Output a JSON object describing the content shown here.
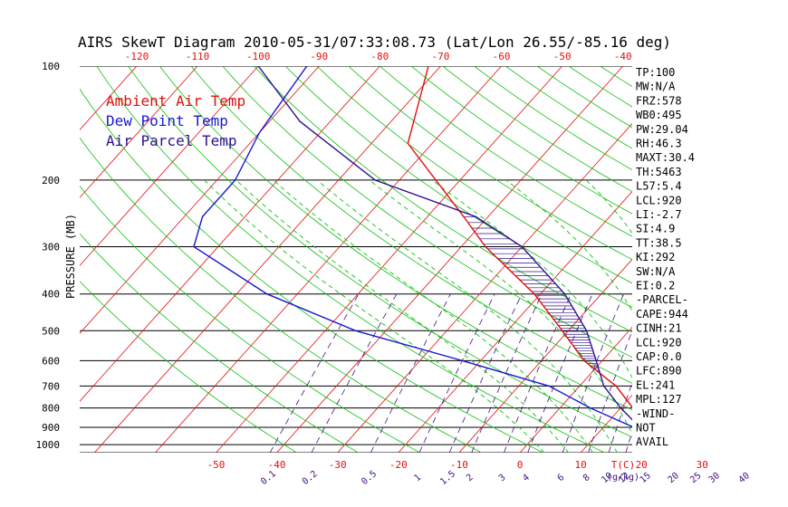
{
  "chart_data": {
    "type": "line",
    "title": "AIRS SkewT Diagram 2010-05-31/07:33:08.73 (Lat/Lon 26.55/-85.16 deg)",
    "ylabel": "PRESSURE (MB)",
    "xunit": "T(C)",
    "mixing_unit": "(g/kg)",
    "legend": [
      {
        "label": "Ambient Air Temp",
        "color": "#e01010"
      },
      {
        "label": "Dew Point Temp",
        "color": "#1818d0"
      },
      {
        "label": "Air Parcel Temp",
        "color": "#301090"
      }
    ],
    "pressure_ticks": [
      "100",
      "200",
      "300",
      "400",
      "500",
      "600",
      "700",
      "800",
      "900",
      "1000"
    ],
    "pressure_values": [
      100,
      200,
      300,
      400,
      500,
      600,
      700,
      800,
      900,
      1000
    ],
    "bottom_temp_ticks": [
      "-50",
      "-40",
      "-30",
      "-20",
      "-10",
      "0",
      "10",
      "20",
      "30"
    ],
    "bottom_temp_values": [
      -50,
      -40,
      -30,
      -20,
      -10,
      0,
      10,
      20,
      30
    ],
    "top_temp_ticks": [
      "-120",
      "-110",
      "-100",
      "-90",
      "-80",
      "-70",
      "-60",
      "-50",
      "-40"
    ],
    "top_temp_values": [
      -120,
      -110,
      -100,
      -90,
      -80,
      -70,
      -60,
      -50,
      -40
    ],
    "mixing_ratio_ticks": [
      "0.1",
      "0.2",
      "0.5",
      "1",
      "1.5",
      "2",
      "3",
      "4",
      "6",
      "8",
      "10",
      "12",
      "15",
      "20",
      "25",
      "30",
      "40"
    ],
    "mixing_ratio_values": [
      0.1,
      0.2,
      0.5,
      1,
      1.5,
      2,
      3,
      4,
      6,
      8,
      10,
      12,
      15,
      20,
      25,
      30,
      40
    ],
    "series": [
      {
        "name": "Ambient Air Temp",
        "color": "#e01010",
        "points": [
          [
            100,
            -72
          ],
          [
            160,
            -64
          ],
          [
            200,
            -54
          ],
          [
            250,
            -44
          ],
          [
            300,
            -36
          ],
          [
            400,
            -21
          ],
          [
            500,
            -11
          ],
          [
            600,
            -3
          ],
          [
            700,
            6
          ],
          [
            800,
            12
          ],
          [
            850,
            15
          ],
          [
            900,
            20
          ],
          [
            1000,
            27
          ]
        ]
      },
      {
        "name": "Dew Point Temp",
        "color": "#1818d0",
        "points": [
          [
            100,
            -92
          ],
          [
            150,
            -90
          ],
          [
            200,
            -87
          ],
          [
            250,
            -87
          ],
          [
            300,
            -84
          ],
          [
            400,
            -65
          ],
          [
            500,
            -45
          ],
          [
            600,
            -23
          ],
          [
            700,
            -5
          ],
          [
            800,
            5
          ],
          [
            900,
            15
          ],
          [
            1000,
            21
          ]
        ]
      },
      {
        "name": "Air Parcel Temp",
        "color": "#301090",
        "points": [
          [
            100,
            -100
          ],
          [
            140,
            -85
          ],
          [
            200,
            -64
          ],
          [
            250,
            -42
          ],
          [
            300,
            -30
          ],
          [
            400,
            -16
          ],
          [
            500,
            -7
          ],
          [
            600,
            -1
          ],
          [
            700,
            4
          ],
          [
            800,
            10
          ],
          [
            900,
            16
          ],
          [
            1000,
            27
          ]
        ]
      }
    ]
  },
  "indices": [
    "TP:100",
    "MW:N/A",
    "FRZ:578",
    "WB0:495",
    "PW:29.04",
    "RH:46.3",
    "MAXT:30.4",
    "TH:5463",
    "L57:5.4",
    "LCL:920",
    "LI:-2.7",
    "SI:4.9",
    "TT:38.5",
    "KI:292",
    "SW:N/A",
    "EI:0.2",
    "-PARCEL-",
    "CAPE:944",
    "CINH:21",
    "LCL:920",
    "CAP:0.0",
    "LFC:890",
    "EL:241",
    "MPL:127",
    "-WIND-",
    "NOT",
    "AVAIL"
  ],
  "colors": {
    "grid": "#000000",
    "isotherm": "#e01010",
    "dry_adiabat": "#10c010",
    "moist_adiabat": "#10c010",
    "mixing_ratio": "#401080",
    "axis_text": "#000000",
    "temp_tick": "#e01010",
    "mixing_tick": "#401080",
    "hatch": "#301090"
  }
}
